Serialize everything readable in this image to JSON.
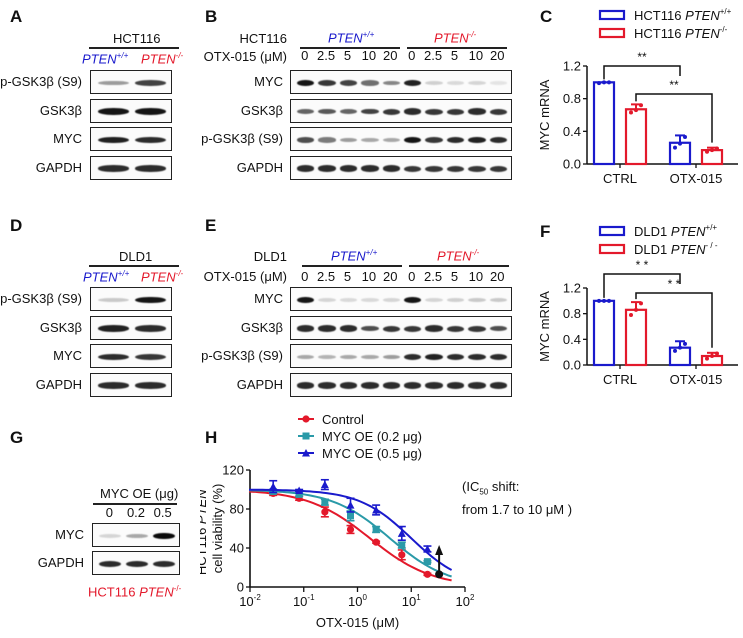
{
  "panels": {
    "A": {
      "label": "A",
      "cell_line": "HCT116",
      "genotypes": [
        {
          "name": "PTEN",
          "sup": "+/+",
          "color": "#1a1acc"
        },
        {
          "name": "PTEN",
          "sup": "-/-",
          "color": "#e3192b"
        }
      ],
      "rows": [
        {
          "label": "p-GSK3β (S9)",
          "intensity": [
            0.35,
            0.75
          ]
        },
        {
          "label": "GSK3β",
          "intensity": [
            0.95,
            0.95
          ]
        },
        {
          "label": "MYC",
          "intensity": [
            0.9,
            0.85
          ]
        },
        {
          "label": "GAPDH",
          "intensity": [
            0.85,
            0.85
          ]
        }
      ]
    },
    "B": {
      "label": "B",
      "cell_line_label": "HCT116",
      "dose_label": "OTX-015 (μM)",
      "genotypes": [
        {
          "name": "PTEN",
          "sup": "+/+",
          "color": "#1a1acc"
        },
        {
          "name": "PTEN",
          "sup": "-/-",
          "color": "#e3192b"
        }
      ],
      "doses": [
        "0",
        "2.5",
        "5",
        "10",
        "20",
        "0",
        "2.5",
        "5",
        "10",
        "20"
      ],
      "rows": [
        {
          "label": "MYC",
          "intensity": [
            0.95,
            0.8,
            0.75,
            0.55,
            0.45,
            0.9,
            0.12,
            0.08,
            0.1,
            0.03
          ]
        },
        {
          "label": "GSK3β",
          "intensity": [
            0.6,
            0.65,
            0.6,
            0.75,
            0.8,
            0.85,
            0.8,
            0.8,
            0.85,
            0.8
          ]
        },
        {
          "label": "p-GSK3β (S9)",
          "intensity": [
            0.7,
            0.5,
            0.35,
            0.3,
            0.3,
            0.95,
            0.8,
            0.85,
            0.9,
            0.85
          ]
        },
        {
          "label": "GAPDH",
          "intensity": [
            0.85,
            0.85,
            0.85,
            0.85,
            0.85,
            0.8,
            0.8,
            0.8,
            0.8,
            0.8
          ]
        }
      ]
    },
    "C": {
      "label": "C",
      "significance": [
        "**",
        "**"
      ]
    },
    "D": {
      "label": "D",
      "cell_line": "DLD1",
      "genotypes": [
        {
          "name": "PTEN",
          "sup": "+/+",
          "color": "#1a1acc"
        },
        {
          "name": "PTEN",
          "sup": "-/-",
          "color": "#e3192b"
        }
      ],
      "rows": [
        {
          "label": "p-GSK3β (S9)",
          "intensity": [
            0.15,
            0.95
          ]
        },
        {
          "label": "GSK3β",
          "intensity": [
            0.9,
            0.85
          ]
        },
        {
          "label": "MYC",
          "intensity": [
            0.85,
            0.8
          ]
        },
        {
          "label": "GAPDH",
          "intensity": [
            0.85,
            0.85
          ]
        }
      ]
    },
    "E": {
      "label": "E",
      "cell_line_label": "DLD1",
      "dose_label": "OTX-015 (μM)",
      "genotypes": [
        {
          "name": "PTEN",
          "sup": "+/+",
          "color": "#1a1acc"
        },
        {
          "name": "PTEN",
          "sup": "-/-",
          "color": "#e3192b"
        }
      ],
      "doses": [
        "0",
        "2.5",
        "5",
        "10",
        "20",
        "0",
        "2.5",
        "5",
        "10",
        "20"
      ],
      "rows": [
        {
          "label": "MYC",
          "intensity": [
            0.95,
            0.1,
            0.08,
            0.08,
            0.1,
            0.95,
            0.1,
            0.12,
            0.15,
            0.15
          ]
        },
        {
          "label": "GSK3β",
          "intensity": [
            0.85,
            0.85,
            0.85,
            0.7,
            0.8,
            0.8,
            0.85,
            0.8,
            0.8,
            0.7
          ]
        },
        {
          "label": "p-GSK3β (S9)",
          "intensity": [
            0.3,
            0.25,
            0.3,
            0.3,
            0.35,
            0.85,
            0.9,
            0.85,
            0.85,
            0.85
          ]
        },
        {
          "label": "GAPDH",
          "intensity": [
            0.85,
            0.85,
            0.85,
            0.85,
            0.85,
            0.85,
            0.85,
            0.85,
            0.85,
            0.85
          ]
        }
      ]
    },
    "F": {
      "label": "F",
      "significance": [
        "* *",
        "* *"
      ]
    },
    "G": {
      "label": "G",
      "header": "MYC OE (μg)",
      "doses": [
        "0",
        "0.2",
        "0.5"
      ],
      "rows": [
        {
          "label": "MYC",
          "intensity": [
            0.1,
            0.3,
            1.0
          ]
        },
        {
          "label": "GAPDH",
          "intensity": [
            0.85,
            0.85,
            0.85
          ]
        }
      ],
      "caption_prefix": "HCT116 ",
      "caption_gene": "PTEN",
      "caption_sup": "-/-"
    },
    "H": {
      "label": "H",
      "annotation_line1_prefix": "(IC",
      "annotation_sub": "50",
      "annotation_line1_suffix": " shift:",
      "annotation_line2": "from 1.7 to 10 μM )"
    }
  },
  "chart_data": [
    {
      "id": "C",
      "type": "bar",
      "title": "",
      "xlabel": "",
      "ylabel": "MYC mRNA",
      "ylim": [
        0,
        1.2
      ],
      "yticks": [
        "0.0",
        "0.4",
        "0.8",
        "1.2"
      ],
      "categories": [
        "CTRL",
        "OTX-015"
      ],
      "legend_position": "top",
      "series": [
        {
          "name": "HCT116 PTEN+/+",
          "legend_prefix": "HCT116 ",
          "legend_gene": "PTEN",
          "legend_sup": "+/+",
          "color": "#1a1acc",
          "values": [
            1.0,
            0.26
          ],
          "errors": [
            0.0,
            0.09
          ],
          "points": [
            [
              0.99,
              1.0,
              1.0
            ],
            [
              0.2,
              0.25,
              0.33
            ]
          ]
        },
        {
          "name": "HCT116 PTEN-/-",
          "legend_prefix": "HCT116 ",
          "legend_gene": "PTEN",
          "legend_sup": "-/-",
          "color": "#e3192b",
          "values": [
            0.67,
            0.17
          ],
          "errors": [
            0.06,
            0.03
          ],
          "points": [
            [
              0.63,
              0.66,
              0.72
            ],
            [
              0.15,
              0.17,
              0.19
            ]
          ]
        }
      ],
      "annotations": [
        {
          "text": "**",
          "from": "CTRL PTEN+/+",
          "to": "OTX-015 PTEN+/+"
        },
        {
          "text": "**",
          "from": "CTRL PTEN-/-",
          "to": "OTX-015 PTEN-/-"
        }
      ]
    },
    {
      "id": "F",
      "type": "bar",
      "title": "",
      "xlabel": "",
      "ylabel": "MYC mRNA",
      "ylim": [
        0,
        1.2
      ],
      "yticks": [
        "0.0",
        "0.4",
        "0.8",
        "1.2"
      ],
      "categories": [
        "CTRL",
        "OTX-015"
      ],
      "legend_position": "top",
      "series": [
        {
          "name": "DLD1 PTEN+/+",
          "legend_prefix": "DLD1  ",
          "legend_gene": "PTEN",
          "legend_sup": "+/+",
          "color": "#1a1acc",
          "values": [
            1.0,
            0.27
          ],
          "errors": [
            0.0,
            0.1
          ],
          "points": [
            [
              1.0,
              1.0,
              1.0
            ],
            [
              0.22,
              0.27,
              0.33
            ]
          ]
        },
        {
          "name": "DLD1 PTEN-/-",
          "legend_prefix": "DLD1  ",
          "legend_gene": "PTEN",
          "legend_sup": "- / -",
          "color": "#e3192b",
          "values": [
            0.86,
            0.14
          ],
          "errors": [
            0.12,
            0.05
          ],
          "points": [
            [
              0.78,
              0.86,
              0.96
            ],
            [
              0.1,
              0.14,
              0.18
            ]
          ]
        }
      ],
      "annotations": [
        {
          "text": "* *",
          "from": "CTRL PTEN+/+",
          "to": "OTX-015 PTEN+/+"
        },
        {
          "text": "* *",
          "from": "CTRL PTEN-/-",
          "to": "OTX-015 PTEN-/-"
        }
      ]
    },
    {
      "id": "H",
      "type": "scatter",
      "title": "",
      "xlabel": "OTX-015 (μM)",
      "ylabel_line1_prefix": "HCT116 ",
      "ylabel_line1_gene": "PTEN",
      "ylabel_line1_sup": "-/-",
      "ylabel_line2": "cell viability (%)",
      "xscale": "log",
      "xlim": [
        0.01,
        100
      ],
      "xticks": [
        {
          "base": "10",
          "exp": "-2"
        },
        {
          "base": "10",
          "exp": "-1"
        },
        {
          "base": "10",
          "exp": "0"
        },
        {
          "base": "10",
          "exp": "1"
        },
        {
          "base": "10",
          "exp": "2"
        }
      ],
      "ylim": [
        0,
        120
      ],
      "yticks": [
        "0",
        "40",
        "80",
        "120"
      ],
      "legend_position": "top",
      "x": [
        0.027,
        0.082,
        0.247,
        0.741,
        2.22,
        6.67,
        20
      ],
      "series": [
        {
          "name": "Control",
          "color": "#e3192b",
          "marker": "circle",
          "values": [
            96,
            91,
            77,
            59,
            46,
            33,
            13
          ],
          "errors": [
            2,
            2,
            5,
            4,
            1,
            5,
            1
          ],
          "ic50": 1.7,
          "hill": 0.75
        },
        {
          "name": "MYC OE (0.2 μg)",
          "color": "#2a9aa8",
          "marker": "square",
          "values": [
            98,
            95,
            87,
            73,
            59,
            43,
            26
          ],
          "errors": [
            2,
            2,
            3,
            5,
            3,
            3,
            1
          ],
          "ic50": 4,
          "hill": 0.8
        },
        {
          "name": "MYC OE (0.5 μg)",
          "color": "#1a1acc",
          "marker": "triangle",
          "values": [
            103,
            99,
            105,
            84,
            79,
            55,
            39
          ],
          "errors": [
            6,
            1,
            5,
            7,
            5,
            7,
            3
          ],
          "ic50": 10,
          "hill": 0.9
        }
      ],
      "annotation_marker": {
        "color": "#111",
        "value": 13,
        "arrow_to": 40
      }
    }
  ]
}
